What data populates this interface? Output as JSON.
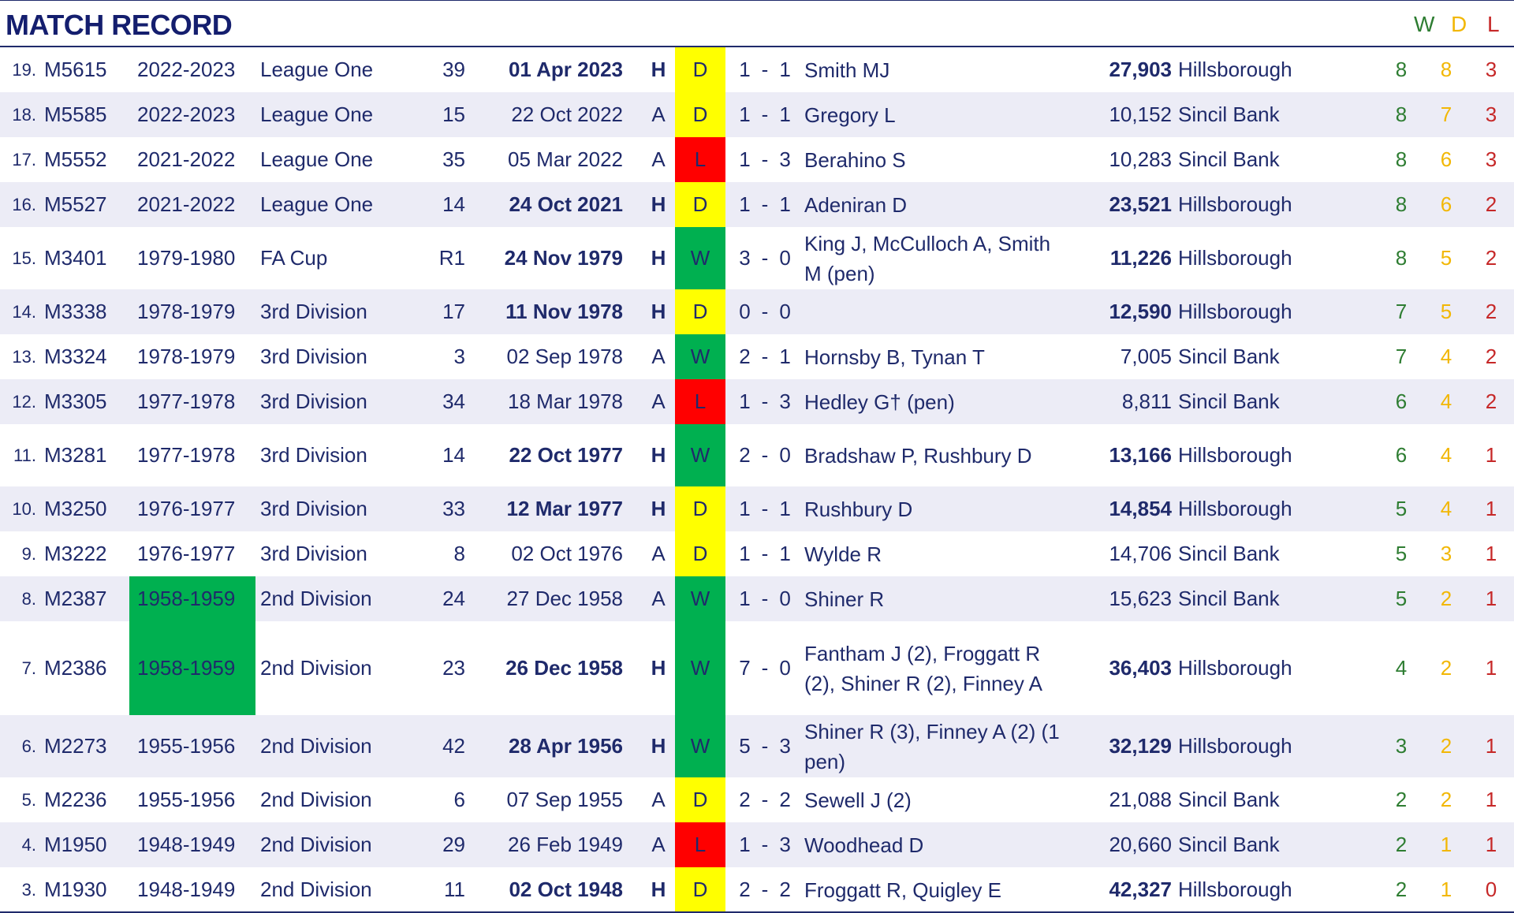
{
  "header": {
    "title": "MATCH RECORD",
    "col_w": "W",
    "col_d": "D",
    "col_l": "L"
  },
  "colors": {
    "win": "#00b050",
    "draw": "#ffff00",
    "loss": "#ff0000",
    "season_highlight": "#00b050",
    "text": "#1f2a6b"
  },
  "rows": [
    {
      "num": "19.",
      "match_id": "M5615",
      "season": "2022-2023",
      "competition": "League One",
      "round": "39",
      "date": "01 Apr 2023",
      "venue_code": "H",
      "result": "D",
      "score_for": "1",
      "score_sep": "-",
      "score_against": "1",
      "scorers": "Smith MJ",
      "attendance": "27,903",
      "ground": "Hillsborough",
      "w": "8",
      "d": "8",
      "l": "3",
      "home": true,
      "highlight_season": false
    },
    {
      "num": "18.",
      "match_id": "M5585",
      "season": "2022-2023",
      "competition": "League One",
      "round": "15",
      "date": "22 Oct 2022",
      "venue_code": "A",
      "result": "D",
      "score_for": "1",
      "score_sep": "-",
      "score_against": "1",
      "scorers": "Gregory L",
      "attendance": "10,152",
      "ground": "Sincil Bank",
      "w": "8",
      "d": "7",
      "l": "3",
      "home": false,
      "highlight_season": false
    },
    {
      "num": "17.",
      "match_id": "M5552",
      "season": "2021-2022",
      "competition": "League One",
      "round": "35",
      "date": "05 Mar 2022",
      "venue_code": "A",
      "result": "L",
      "score_for": "1",
      "score_sep": "-",
      "score_against": "3",
      "scorers": "Berahino S",
      "attendance": "10,283",
      "ground": "Sincil Bank",
      "w": "8",
      "d": "6",
      "l": "3",
      "home": false,
      "highlight_season": false
    },
    {
      "num": "16.",
      "match_id": "M5527",
      "season": "2021-2022",
      "competition": "League One",
      "round": "14",
      "date": "24 Oct 2021",
      "venue_code": "H",
      "result": "D",
      "score_for": "1",
      "score_sep": "-",
      "score_against": "1",
      "scorers": "Adeniran D",
      "attendance": "23,521",
      "ground": "Hillsborough",
      "w": "8",
      "d": "6",
      "l": "2",
      "home": true,
      "highlight_season": false
    },
    {
      "num": "15.",
      "match_id": "M3401",
      "season": "1979-1980",
      "competition": "FA Cup",
      "round": "R1",
      "date": "24 Nov 1979",
      "venue_code": "H",
      "result": "W",
      "score_for": "3",
      "score_sep": "-",
      "score_against": "0",
      "scorers": "King J, McCulloch A, Smith M (pen)",
      "attendance": "11,226",
      "ground": "Hillsborough",
      "w": "8",
      "d": "5",
      "l": "2",
      "home": true,
      "highlight_season": false
    },
    {
      "num": "14.",
      "match_id": "M3338",
      "season": "1978-1979",
      "competition": "3rd Division",
      "round": "17",
      "date": "11 Nov 1978",
      "venue_code": "H",
      "result": "D",
      "score_for": "0",
      "score_sep": "-",
      "score_against": "0",
      "scorers": "",
      "attendance": "12,590",
      "ground": "Hillsborough",
      "w": "7",
      "d": "5",
      "l": "2",
      "home": true,
      "highlight_season": false
    },
    {
      "num": "13.",
      "match_id": "M3324",
      "season": "1978-1979",
      "competition": "3rd Division",
      "round": "3",
      "date": "02 Sep 1978",
      "venue_code": "A",
      "result": "W",
      "score_for": "2",
      "score_sep": "-",
      "score_against": "1",
      "scorers": "Hornsby B, Tynan T",
      "attendance": "7,005",
      "ground": "Sincil Bank",
      "w": "7",
      "d": "4",
      "l": "2",
      "home": false,
      "highlight_season": false
    },
    {
      "num": "12.",
      "match_id": "M3305",
      "season": "1977-1978",
      "competition": "3rd Division",
      "round": "34",
      "date": "18 Mar 1978",
      "venue_code": "A",
      "result": "L",
      "score_for": "1",
      "score_sep": "-",
      "score_against": "3",
      "scorers": "Hedley G† (pen)",
      "attendance": "8,811",
      "ground": "Sincil Bank",
      "w": "6",
      "d": "4",
      "l": "2",
      "home": false,
      "highlight_season": false
    },
    {
      "num": "11.",
      "match_id": "M3281",
      "season": "1977-1978",
      "competition": "3rd Division",
      "round": "14",
      "date": "22 Oct 1977",
      "venue_code": "H",
      "result": "W",
      "score_for": "2",
      "score_sep": "-",
      "score_against": "0",
      "scorers": "Bradshaw P, Rushbury D",
      "attendance": "13,166",
      "ground": "Hillsborough",
      "w": "6",
      "d": "4",
      "l": "1",
      "home": true,
      "highlight_season": false
    },
    {
      "num": "10.",
      "match_id": "M3250",
      "season": "1976-1977",
      "competition": "3rd Division",
      "round": "33",
      "date": "12 Mar 1977",
      "venue_code": "H",
      "result": "D",
      "score_for": "1",
      "score_sep": "-",
      "score_against": "1",
      "scorers": "Rushbury D",
      "attendance": "14,854",
      "ground": "Hillsborough",
      "w": "5",
      "d": "4",
      "l": "1",
      "home": true,
      "highlight_season": false
    },
    {
      "num": "9.",
      "match_id": "M3222",
      "season": "1976-1977",
      "competition": "3rd Division",
      "round": "8",
      "date": "02 Oct 1976",
      "venue_code": "A",
      "result": "D",
      "score_for": "1",
      "score_sep": "-",
      "score_against": "1",
      "scorers": "Wylde R",
      "attendance": "14,706",
      "ground": "Sincil Bank",
      "w": "5",
      "d": "3",
      "l": "1",
      "home": false,
      "highlight_season": false
    },
    {
      "num": "8.",
      "match_id": "M2387",
      "season": "1958-1959",
      "competition": "2nd Division",
      "round": "24",
      "date": "27 Dec 1958",
      "venue_code": "A",
      "result": "W",
      "score_for": "1",
      "score_sep": "-",
      "score_against": "0",
      "scorers": "Shiner R",
      "attendance": "15,623",
      "ground": "Sincil Bank",
      "w": "5",
      "d": "2",
      "l": "1",
      "home": false,
      "highlight_season": true
    },
    {
      "num": "7.",
      "match_id": "M2386",
      "season": "1958-1959",
      "competition": "2nd Division",
      "round": "23",
      "date": "26 Dec 1958",
      "venue_code": "H",
      "result": "W",
      "score_for": "7",
      "score_sep": "-",
      "score_against": "0",
      "scorers": "Fantham J (2), Froggatt R (2), Shiner R (2), Finney A",
      "attendance": "36,403",
      "ground": "Hillsborough",
      "w": "4",
      "d": "2",
      "l": "1",
      "home": true,
      "highlight_season": true
    },
    {
      "num": "6.",
      "match_id": "M2273",
      "season": "1955-1956",
      "competition": "2nd Division",
      "round": "42",
      "date": "28 Apr 1956",
      "venue_code": "H",
      "result": "W",
      "score_for": "5",
      "score_sep": "-",
      "score_against": "3",
      "scorers": "Shiner R (3), Finney A (2) (1 pen)",
      "attendance": "32,129",
      "ground": "Hillsborough",
      "w": "3",
      "d": "2",
      "l": "1",
      "home": true,
      "highlight_season": false
    },
    {
      "num": "5.",
      "match_id": "M2236",
      "season": "1955-1956",
      "competition": "2nd Division",
      "round": "6",
      "date": "07 Sep 1955",
      "venue_code": "A",
      "result": "D",
      "score_for": "2",
      "score_sep": "-",
      "score_against": "2",
      "scorers": "Sewell J (2)",
      "attendance": "21,088",
      "ground": "Sincil Bank",
      "w": "2",
      "d": "2",
      "l": "1",
      "home": false,
      "highlight_season": false
    },
    {
      "num": "4.",
      "match_id": "M1950",
      "season": "1948-1949",
      "competition": "2nd Division",
      "round": "29",
      "date": "26 Feb 1949",
      "venue_code": "A",
      "result": "L",
      "score_for": "1",
      "score_sep": "-",
      "score_against": "3",
      "scorers": "Woodhead D",
      "attendance": "20,660",
      "ground": "Sincil Bank",
      "w": "2",
      "d": "1",
      "l": "1",
      "home": false,
      "highlight_season": false
    },
    {
      "num": "3.",
      "match_id": "M1930",
      "season": "1948-1949",
      "competition": "2nd Division",
      "round": "11",
      "date": "02 Oct 1948",
      "venue_code": "H",
      "result": "D",
      "score_for": "2",
      "score_sep": "-",
      "score_against": "2",
      "scorers": "Froggatt R, Quigley E",
      "attendance": "42,327",
      "ground": "Hillsborough",
      "w": "2",
      "d": "1",
      "l": "0",
      "home": true,
      "highlight_season": false
    }
  ]
}
